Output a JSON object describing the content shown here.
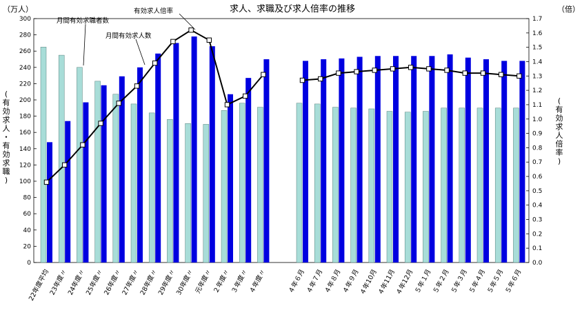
{
  "chart_data": {
    "type": "bar",
    "title": "求人、求職及び求人倍率の推移",
    "left_unit": "（万人）",
    "right_unit": "（倍）",
    "ylabel_left_chars": [
      "(",
      "有",
      "効",
      "求",
      "人",
      "・",
      "有",
      "効",
      "求",
      "職",
      ")"
    ],
    "ylabel_right_chars": [
      "(",
      "有",
      "効",
      "求",
      "人",
      "倍",
      "率",
      ")"
    ],
    "ylim": [
      0,
      300
    ],
    "ylim_right": [
      0.0,
      1.7
    ],
    "yticks_left": [
      "0",
      "20",
      "40",
      "60",
      "80",
      "100",
      "120",
      "140",
      "160",
      "180",
      "200",
      "220",
      "240",
      "260",
      "280",
      "300"
    ],
    "yticks_right": [
      "0.0",
      "0.1",
      "0.2",
      "0.3",
      "0.4",
      "0.5",
      "0.6",
      "0.7",
      "0.8",
      "0.9",
      "1.0",
      "1.1",
      "1.2",
      "1.3",
      "1.4",
      "1.5",
      "1.6",
      "1.7"
    ],
    "categories": [
      "22年度平均",
      "23年度〃",
      "24年度〃",
      "25年度〃",
      "26年度〃",
      "27年度〃",
      "28年度〃",
      "29年度〃",
      "30年度〃",
      "元年度〃",
      "２年度〃",
      "３年度〃",
      "４年度〃",
      "４年６月",
      "４年７月",
      "４年８月",
      "４年９月",
      "４年10月",
      "４年11月",
      "４年12月",
      "５年１月",
      "５年２月",
      "５年３月",
      "５年４月",
      "５年５月",
      "５年６月"
    ],
    "series": [
      {
        "name": "月間有効求職者数",
        "kind": "bar",
        "color": "#a8ddd8",
        "values": [
          265,
          255,
          240,
          223,
          207,
          195,
          184,
          176,
          171,
          170,
          187,
          196,
          191,
          196,
          195,
          191,
          190,
          189,
          186,
          185,
          186,
          190,
          190,
          190,
          190,
          190
        ]
      },
      {
        "name": "月間有効求人数",
        "kind": "bar",
        "color": "#0000e0",
        "values": [
          148,
          174,
          197,
          218,
          229,
          240,
          257,
          270,
          278,
          266,
          207,
          227,
          250,
          248,
          250,
          251,
          253,
          254,
          254,
          254,
          254,
          256,
          252,
          250,
          248,
          248
        ]
      },
      {
        "name": "有効求人倍率",
        "kind": "line",
        "axis": "right",
        "color": "#000000",
        "values": [
          0.56,
          0.68,
          0.82,
          0.97,
          1.11,
          1.23,
          1.39,
          1.54,
          1.62,
          1.55,
          1.1,
          1.16,
          1.31,
          1.27,
          1.28,
          1.32,
          1.33,
          1.34,
          1.35,
          1.36,
          1.35,
          1.34,
          1.32,
          1.32,
          1.31,
          1.3
        ]
      }
    ],
    "annotations": [
      "有効求人倍率",
      "月間有効求職者数",
      "月間有効求人数"
    ],
    "grid": false,
    "legend": "annotations inside plot"
  }
}
